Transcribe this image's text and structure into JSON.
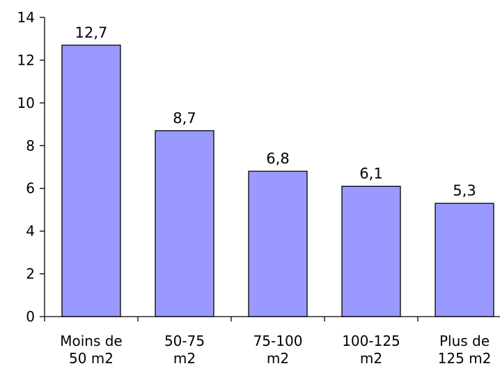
{
  "chart_data": {
    "type": "bar",
    "categories": [
      [
        "Moins de",
        "50 m2"
      ],
      [
        "50-75",
        "m2"
      ],
      [
        "75-100",
        "m2"
      ],
      [
        "100-125",
        "m2"
      ],
      [
        "Plus de",
        "125 m2"
      ]
    ],
    "values": [
      12.7,
      8.7,
      6.8,
      6.1,
      5.3
    ],
    "data_labels": [
      "12,7",
      "8,7",
      "6,8",
      "6,1",
      "5,3"
    ],
    "title": "",
    "xlabel": "",
    "ylabel": "",
    "ylim": [
      0,
      14
    ],
    "yticks": [
      0,
      2,
      4,
      6,
      8,
      10,
      12,
      14
    ],
    "grid": false,
    "legend": "none",
    "colors": {
      "bar_fill": "#9999ff",
      "bar_stroke": "#000000",
      "axis": "#000000"
    }
  }
}
